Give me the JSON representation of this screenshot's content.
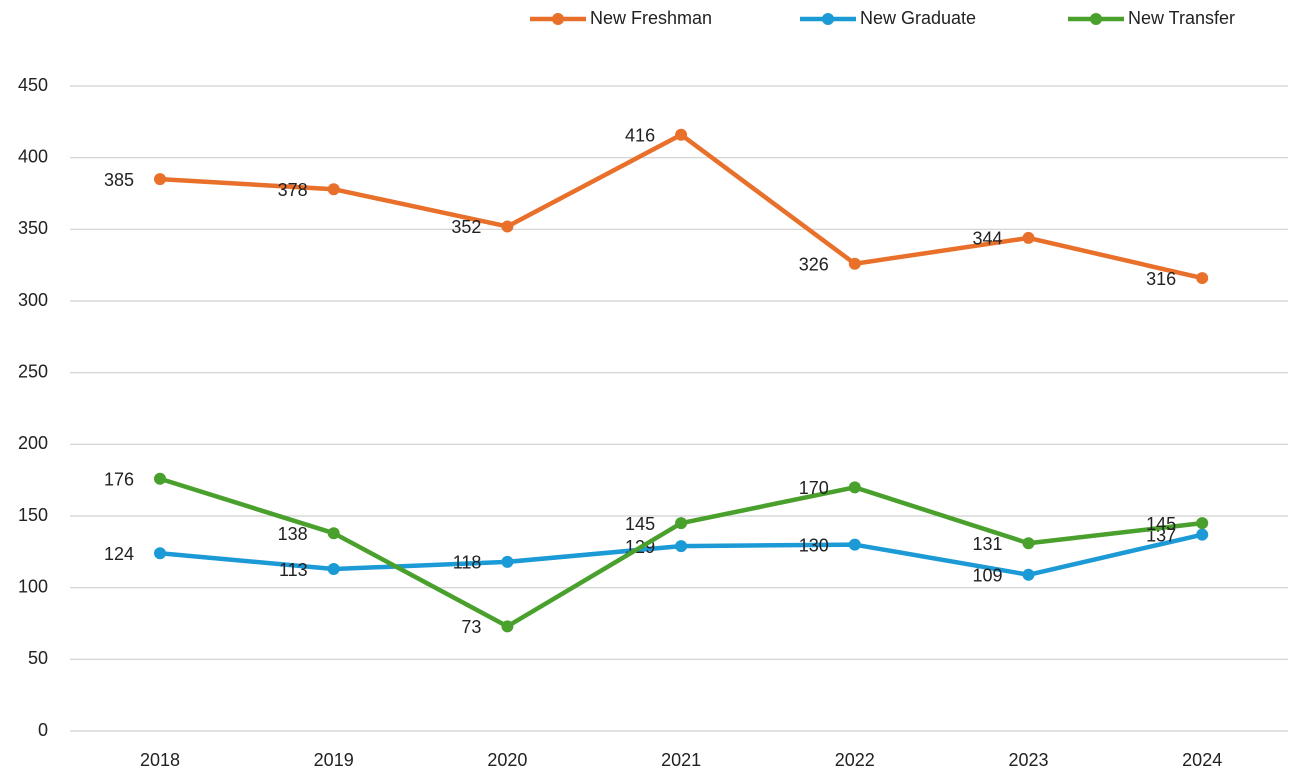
{
  "chart_data": {
    "type": "line",
    "categories": [
      "2018",
      "2019",
      "2020",
      "2021",
      "2022",
      "2023",
      "2024"
    ],
    "series": [
      {
        "name": "New Freshman",
        "color": "#e8702a",
        "values": [
          385,
          378,
          352,
          416,
          326,
          344,
          316
        ]
      },
      {
        "name": "New Graduate",
        "color": "#1b9ad6",
        "values": [
          124,
          113,
          118,
          129,
          130,
          109,
          137
        ]
      },
      {
        "name": "New Transfer",
        "color": "#4aa02c",
        "values": [
          176,
          138,
          73,
          145,
          170,
          131,
          145
        ]
      }
    ],
    "ylim": [
      0,
      450
    ],
    "yticks": [
      0,
      50,
      100,
      150,
      200,
      250,
      300,
      350,
      400,
      450
    ],
    "grid": true,
    "legend": "top"
  }
}
